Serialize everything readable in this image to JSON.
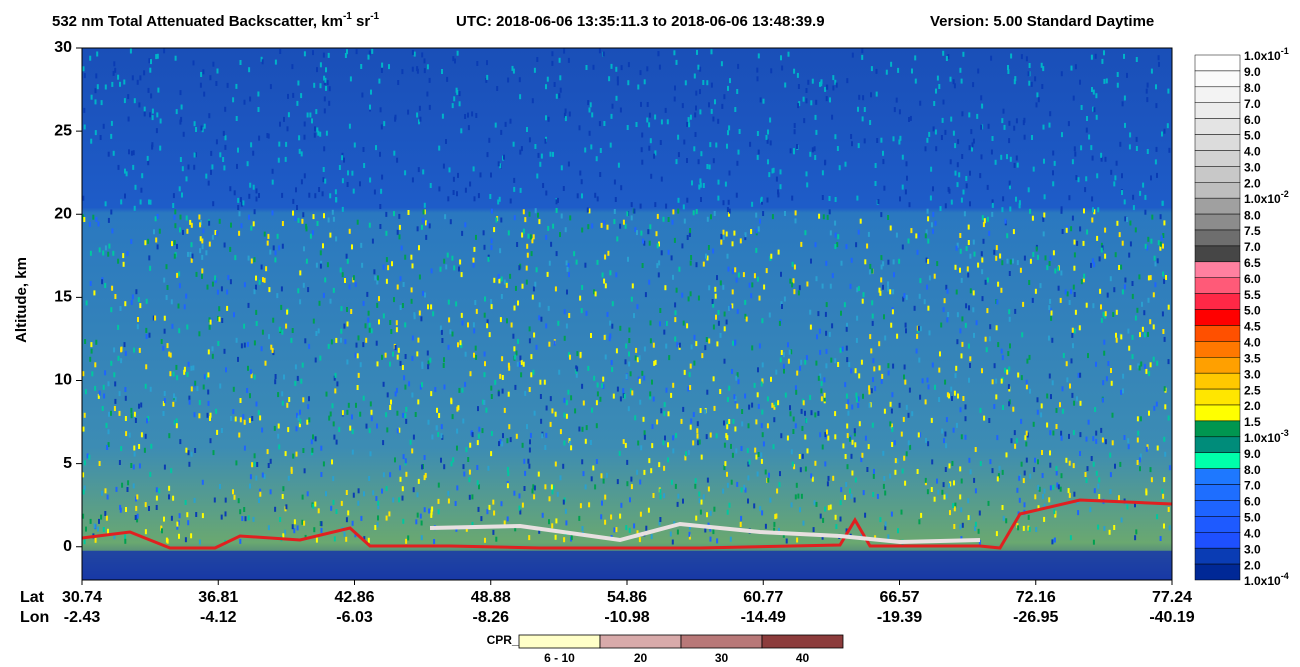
{
  "chart_data": {
    "type": "curtain",
    "title": [
      "532 nm Total Attenuated Backscatter, km",
      "-1",
      " sr",
      "-1"
    ],
    "subtitle": "UTC:  2018-06-06 13:35:11.3  to  2018-06-06 13:48:39.9",
    "version": "Version: 5.00  Standard  Daytime",
    "y_label": "Altitude, km",
    "ylim": [
      -2,
      30
    ],
    "yticks": [
      0,
      5,
      10,
      15,
      20,
      25,
      30
    ],
    "x_row_labels": [
      "Lat",
      "Lon"
    ],
    "xticks": [
      {
        "lat": "30.74",
        "lon": "-2.43"
      },
      {
        "lat": "36.81",
        "lon": "-4.12"
      },
      {
        "lat": "42.86",
        "lon": "-6.03"
      },
      {
        "lat": "48.88",
        "lon": "-8.26"
      },
      {
        "lat": "54.86",
        "lon": "-10.98"
      },
      {
        "lat": "60.77",
        "lon": "-14.49"
      },
      {
        "lat": "66.57",
        "lon": "-19.39"
      },
      {
        "lat": "72.16",
        "lon": "-26.95"
      },
      {
        "lat": "77.24",
        "lon": "-40.19"
      }
    ],
    "colorbar": {
      "labels": [
        {
          "text": "1.0x10",
          "sup": "-1"
        },
        "9.0",
        "8.0",
        "7.0",
        "6.0",
        "5.0",
        "4.0",
        "3.0",
        "2.0",
        {
          "text": "1.0x10",
          "sup": "-2"
        },
        "8.0",
        "7.5",
        "7.0",
        "6.5",
        "6.0",
        "5.5",
        "5.0",
        "4.5",
        "4.0",
        "3.5",
        "3.0",
        "2.5",
        "2.0",
        "1.5",
        {
          "text": "1.0x10",
          "sup": "-3"
        },
        "9.0",
        "8.0",
        "7.0",
        "6.0",
        "5.0",
        "4.0",
        "3.0",
        "2.0",
        {
          "text": "1.0x10",
          "sup": "-4"
        }
      ],
      "colors": [
        "#ffffff",
        "#fafafa",
        "#f3f3f3",
        "#ececec",
        "#e4e4e4",
        "#dcdcdc",
        "#d2d2d2",
        "#c8c8c8",
        "#bebebe",
        "#a0a0a0",
        "#8c8c8c",
        "#6e6e6e",
        "#464646",
        "#ff80a0",
        "#ff5a78",
        "#ff2846",
        "#ff0000",
        "#ff5000",
        "#ff7800",
        "#ffa000",
        "#ffc800",
        "#ffe600",
        "#ffff00",
        "#009650",
        "#008c7a",
        "#00ffaa",
        "#1e78ff",
        "#1e6eff",
        "#1e64ff",
        "#1e5aff",
        "#1e50ff",
        "#0a3cb4",
        "#002896"
      ]
    },
    "cpr_legend": {
      "title": "CPR_Cloud_mask",
      "labels": [
        "6 - 10",
        "20",
        "30",
        "40"
      ],
      "colors": [
        "#ffffc8",
        "#d8aaaa",
        "#b87878",
        "#8c3c3c"
      ]
    }
  }
}
